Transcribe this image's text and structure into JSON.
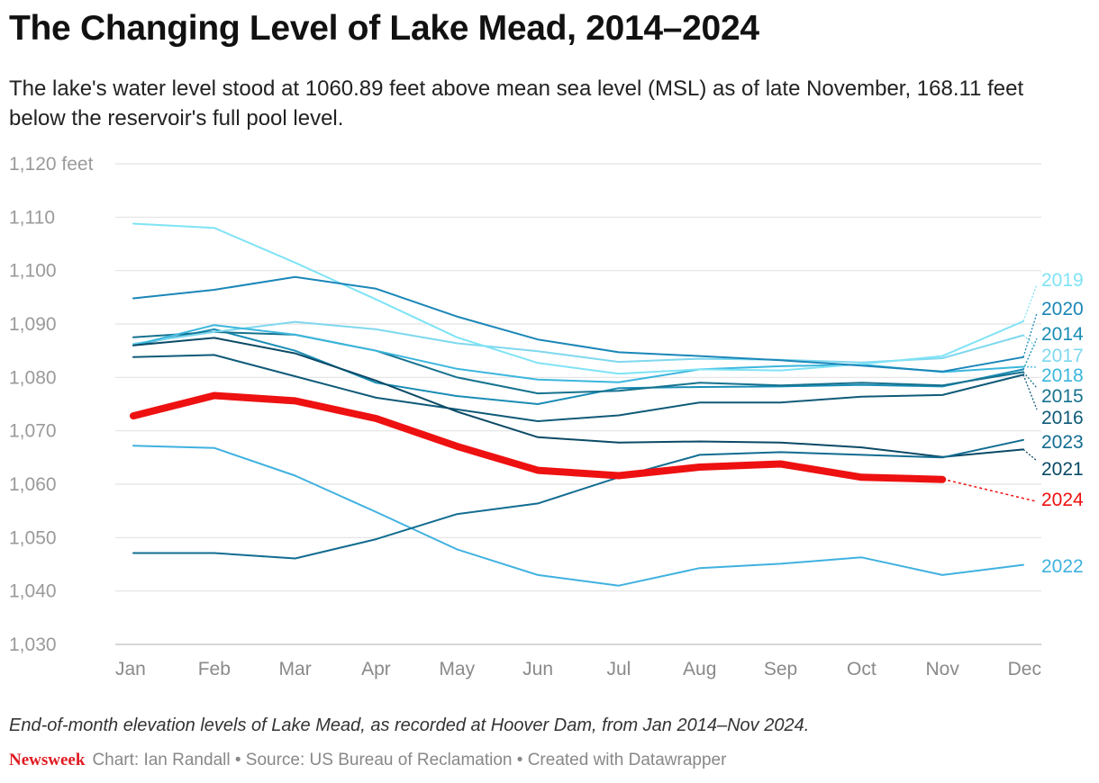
{
  "chart_data": {
    "type": "line",
    "title": "The Changing Level of Lake Mead, 2014–2024",
    "subtitle": "The lake's water level stood at 1060.89 feet above mean sea level (MSL) as of late November, 168.11 feet below the reservoir's full pool level.",
    "xlabel": "",
    "ylabel": "",
    "categories": [
      "Jan",
      "Feb",
      "Mar",
      "Apr",
      "May",
      "Jun",
      "Jul",
      "Aug",
      "Sep",
      "Oct",
      "Nov",
      "Dec"
    ],
    "ylim": [
      1030,
      1120
    ],
    "yticks": [
      1030,
      1040,
      1050,
      1060,
      1070,
      1080,
      1090,
      1100,
      1110,
      1120
    ],
    "ytick_labels": [
      "1,030",
      "1,040",
      "1,050",
      "1,060",
      "1,070",
      "1,080",
      "1,090",
      "1,100",
      "1,110",
      "1,120 feet"
    ],
    "grid": true,
    "series": [
      {
        "name": "2014",
        "color": "#1a8db5",
        "values": [
          1086.0,
          1089.0,
          1085.0,
          1079.0,
          1076.5,
          1075.0,
          1078.0,
          1078.2,
          1078.3,
          1078.6,
          1078.3,
          1081.5
        ]
      },
      {
        "name": "2015",
        "color": "#16728f",
        "values": [
          1087.5,
          1088.5,
          1088.0,
          1085.0,
          1080.0,
          1077.0,
          1077.5,
          1079.0,
          1078.5,
          1079.0,
          1078.5,
          1081.0
        ]
      },
      {
        "name": "2016",
        "color": "#0f5a78",
        "values": [
          1083.8,
          1084.2,
          1080.2,
          1076.2,
          1074.0,
          1071.8,
          1072.9,
          1075.3,
          1075.3,
          1076.4,
          1076.7,
          1080.5
        ]
      },
      {
        "name": "2017",
        "color": "#7fd8ee",
        "values": [
          1086.3,
          1088.5,
          1090.4,
          1089.0,
          1086.4,
          1084.9,
          1082.9,
          1083.5,
          1083.3,
          1082.8,
          1083.6,
          1087.9
        ]
      },
      {
        "name": "2018",
        "color": "#3bb6dd",
        "values": [
          1086.0,
          1089.8,
          1088.0,
          1085.0,
          1081.6,
          1079.6,
          1079.1,
          1081.5,
          1082.1,
          1082.4,
          1081.0,
          1082.0
        ]
      },
      {
        "name": "2019",
        "color": "#7fe3f5",
        "values": [
          1108.8,
          1108.0,
          1101.5,
          1094.6,
          1087.5,
          1082.7,
          1080.7,
          1081.5,
          1081.3,
          1082.5,
          1084.0,
          1090.5
        ]
      },
      {
        "name": "2020",
        "color": "#1b86b8",
        "values": [
          1094.8,
          1096.4,
          1098.8,
          1096.6,
          1091.4,
          1087.1,
          1084.7,
          1084.0,
          1083.2,
          1082.2,
          1081.1,
          1083.8
        ]
      },
      {
        "name": "2021",
        "color": "#0b4a66",
        "values": [
          1086.0,
          1087.4,
          1084.5,
          1079.4,
          1073.6,
          1068.8,
          1067.8,
          1068.0,
          1067.8,
          1066.9,
          1065.1,
          1066.5
        ]
      },
      {
        "name": "2022",
        "color": "#40b1e0",
        "values": [
          1067.2,
          1066.8,
          1061.6,
          1054.8,
          1047.8,
          1043.0,
          1041.0,
          1044.3,
          1045.1,
          1046.3,
          1043.0,
          1044.9
        ]
      },
      {
        "name": "2023",
        "color": "#126c91",
        "values": [
          1047.1,
          1047.1,
          1046.1,
          1049.7,
          1054.4,
          1056.4,
          1061.3,
          1065.5,
          1066.0,
          1065.5,
          1065.0,
          1068.3
        ]
      },
      {
        "name": "2024",
        "color": "#ee1111",
        "values": [
          1072.8,
          1076.6,
          1075.6,
          1072.3,
          1067.1,
          1062.6,
          1061.6,
          1063.2,
          1063.8,
          1061.3,
          1060.9,
          null
        ]
      }
    ],
    "annotations": [
      "2019",
      "2020",
      "2014",
      "2017",
      "2018",
      "2015",
      "2016",
      "2023",
      "2021",
      "2024",
      "2022"
    ],
    "note": "End-of-month elevation levels of Lake Mead, as recorded at Hoover Dam, from Jan 2014–Nov 2024.",
    "credit_logo": "Newsweek",
    "credit": "Chart: Ian Randall • Source: US Bureau of Reclamation • Created with Datawrapper"
  }
}
